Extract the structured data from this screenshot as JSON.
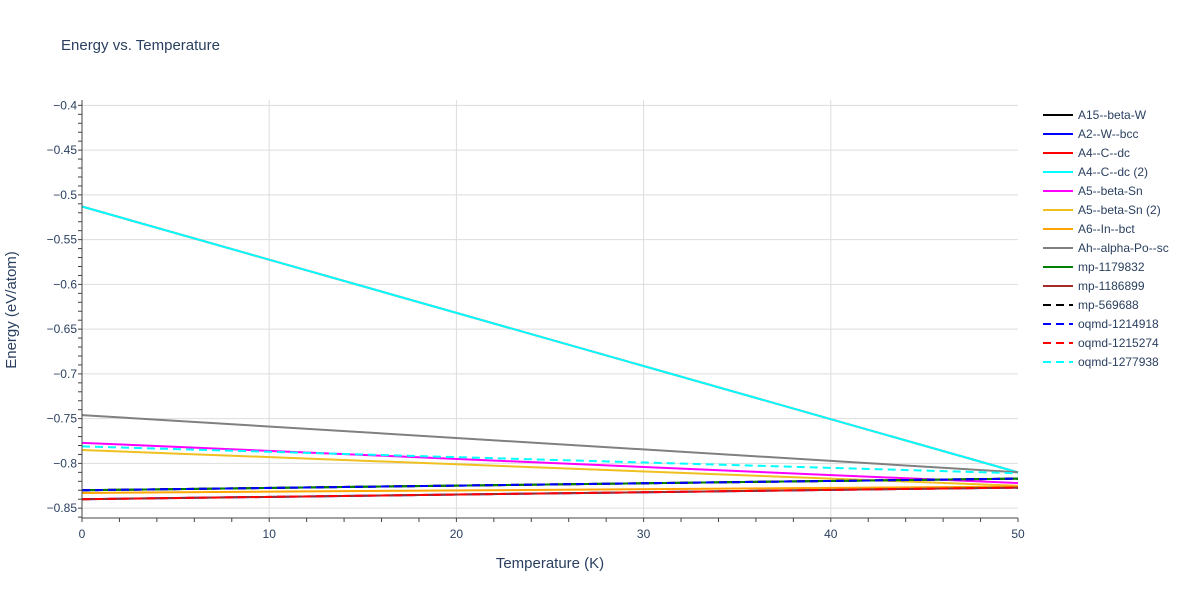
{
  "chart_data": {
    "type": "line",
    "title": "Energy vs. Temperature",
    "xlabel": "Temperature (K)",
    "ylabel": "Energy (eV/atom)",
    "xlim": [
      0,
      50
    ],
    "ylim": [
      -0.861,
      -0.394
    ],
    "xticks": [
      0,
      10,
      20,
      30,
      40,
      50
    ],
    "yticks": [
      -0.85,
      -0.8,
      -0.75,
      -0.7,
      -0.65,
      -0.6,
      -0.55,
      -0.5,
      -0.45,
      -0.4
    ],
    "ytick_labels": [
      "−0.85",
      "−0.8",
      "−0.75",
      "−0.7",
      "−0.65",
      "−0.6",
      "−0.55",
      "−0.5",
      "−0.45",
      "−0.4"
    ],
    "grid": true,
    "legend_placement": "right",
    "x": [
      0,
      50
    ],
    "series": [
      {
        "name": "A15--beta-W",
        "color": "#000000",
        "dash": false,
        "values": [
          -0.83,
          -0.817
        ]
      },
      {
        "name": "A2--W--bcc",
        "color": "#0000ff",
        "dash": false,
        "values": [
          -0.84,
          -0.827
        ]
      },
      {
        "name": "A4--C--dc",
        "color": "#ff0000",
        "dash": false,
        "values": [
          -0.513,
          -0.81
        ]
      },
      {
        "name": "A4--C--dc (2)",
        "color": "#00ffff",
        "dash": false,
        "values": [
          -0.513,
          -0.81
        ]
      },
      {
        "name": "A5--beta-Sn",
        "color": "#ff00ff",
        "dash": false,
        "values": [
          -0.777,
          -0.822
        ]
      },
      {
        "name": "A5--beta-Sn (2)",
        "color": "#f0c020",
        "dash": false,
        "values": [
          -0.785,
          -0.825
        ]
      },
      {
        "name": "A6--In--bct",
        "color": "#ffa500",
        "dash": false,
        "values": [
          -0.833,
          -0.826
        ]
      },
      {
        "name": "Ah--alpha-Po--sc",
        "color": "#808080",
        "dash": false,
        "values": [
          -0.746,
          -0.81
        ]
      },
      {
        "name": "mp-1179832",
        "color": "#008000",
        "dash": false,
        "values": [
          -0.83,
          -0.817
        ]
      },
      {
        "name": "mp-1186899",
        "color": "#a52a2a",
        "dash": false,
        "values": [
          -0.84,
          -0.827
        ]
      },
      {
        "name": "mp-569688",
        "color": "#000000",
        "dash": true,
        "values": [
          -0.83,
          -0.817
        ]
      },
      {
        "name": "oqmd-1214918",
        "color": "#0000ff",
        "dash": true,
        "values": [
          -0.83,
          -0.817
        ]
      },
      {
        "name": "oqmd-1215274",
        "color": "#ff0000",
        "dash": true,
        "values": [
          -0.84,
          -0.827
        ]
      },
      {
        "name": "oqmd-1277938",
        "color": "#00ffff",
        "dash": true,
        "values": [
          -0.781,
          -0.811
        ]
      }
    ]
  }
}
